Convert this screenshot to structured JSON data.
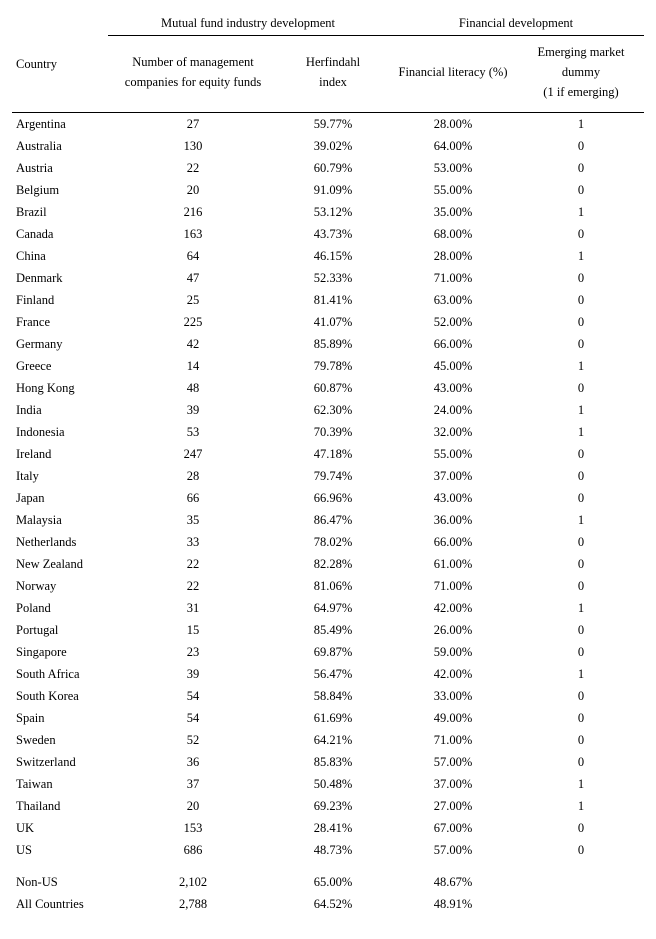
{
  "headers": {
    "country": "Country",
    "group_mf": "Mutual fund industry development",
    "group_fd": "Financial development",
    "col_mgmt_l1": "Number of management",
    "col_mgmt_l2": "companies for equity funds",
    "col_herf_l1": "Herfindahl",
    "col_herf_l2": "index",
    "col_fl": "Financial literacy (%)",
    "col_em_l1": "Emerging market",
    "col_em_l2": "dummy",
    "col_em_l3": "(1 if emerging)"
  },
  "rows": [
    {
      "c": "Argentina",
      "m": "27",
      "h": "59.77%",
      "f": "28.00%",
      "e": "1"
    },
    {
      "c": "Australia",
      "m": "130",
      "h": "39.02%",
      "f": "64.00%",
      "e": "0"
    },
    {
      "c": "Austria",
      "m": "22",
      "h": "60.79%",
      "f": "53.00%",
      "e": "0"
    },
    {
      "c": "Belgium",
      "m": "20",
      "h": "91.09%",
      "f": "55.00%",
      "e": "0"
    },
    {
      "c": "Brazil",
      "m": "216",
      "h": "53.12%",
      "f": "35.00%",
      "e": "1"
    },
    {
      "c": "Canada",
      "m": "163",
      "h": "43.73%",
      "f": "68.00%",
      "e": "0"
    },
    {
      "c": "China",
      "m": "64",
      "h": "46.15%",
      "f": "28.00%",
      "e": "1"
    },
    {
      "c": "Denmark",
      "m": "47",
      "h": "52.33%",
      "f": "71.00%",
      "e": "0"
    },
    {
      "c": "Finland",
      "m": "25",
      "h": "81.41%",
      "f": "63.00%",
      "e": "0"
    },
    {
      "c": "France",
      "m": "225",
      "h": "41.07%",
      "f": "52.00%",
      "e": "0"
    },
    {
      "c": "Germany",
      "m": "42",
      "h": "85.89%",
      "f": "66.00%",
      "e": "0"
    },
    {
      "c": "Greece",
      "m": "14",
      "h": "79.78%",
      "f": "45.00%",
      "e": "1"
    },
    {
      "c": "Hong Kong",
      "m": "48",
      "h": "60.87%",
      "f": "43.00%",
      "e": "0"
    },
    {
      "c": "India",
      "m": "39",
      "h": "62.30%",
      "f": "24.00%",
      "e": "1"
    },
    {
      "c": "Indonesia",
      "m": "53",
      "h": "70.39%",
      "f": "32.00%",
      "e": "1"
    },
    {
      "c": "Ireland",
      "m": "247",
      "h": "47.18%",
      "f": "55.00%",
      "e": "0"
    },
    {
      "c": "Italy",
      "m": "28",
      "h": "79.74%",
      "f": "37.00%",
      "e": "0"
    },
    {
      "c": "Japan",
      "m": "66",
      "h": "66.96%",
      "f": "43.00%",
      "e": "0"
    },
    {
      "c": "Malaysia",
      "m": "35",
      "h": "86.47%",
      "f": "36.00%",
      "e": "1"
    },
    {
      "c": "Netherlands",
      "m": "33",
      "h": "78.02%",
      "f": "66.00%",
      "e": "0"
    },
    {
      "c": "New Zealand",
      "m": "22",
      "h": "82.28%",
      "f": "61.00%",
      "e": "0"
    },
    {
      "c": "Norway",
      "m": "22",
      "h": "81.06%",
      "f": "71.00%",
      "e": "0"
    },
    {
      "c": "Poland",
      "m": "31",
      "h": "64.97%",
      "f": "42.00%",
      "e": "1"
    },
    {
      "c": "Portugal",
      "m": "15",
      "h": "85.49%",
      "f": "26.00%",
      "e": "0"
    },
    {
      "c": "Singapore",
      "m": "23",
      "h": "69.87%",
      "f": "59.00%",
      "e": "0"
    },
    {
      "c": "South Africa",
      "m": "39",
      "h": "56.47%",
      "f": "42.00%",
      "e": "1"
    },
    {
      "c": "South Korea",
      "m": "54",
      "h": "58.84%",
      "f": "33.00%",
      "e": "0"
    },
    {
      "c": "Spain",
      "m": "54",
      "h": "61.69%",
      "f": "49.00%",
      "e": "0"
    },
    {
      "c": "Sweden",
      "m": "52",
      "h": "64.21%",
      "f": "71.00%",
      "e": "0"
    },
    {
      "c": "Switzerland",
      "m": "36",
      "h": "85.83%",
      "f": "57.00%",
      "e": "0"
    },
    {
      "c": "Taiwan",
      "m": "37",
      "h": "50.48%",
      "f": "37.00%",
      "e": "1"
    },
    {
      "c": "Thailand",
      "m": "20",
      "h": "69.23%",
      "f": "27.00%",
      "e": "1"
    },
    {
      "c": "UK",
      "m": "153",
      "h": "28.41%",
      "f": "67.00%",
      "e": "0"
    },
    {
      "c": "US",
      "m": "686",
      "h": "48.73%",
      "f": "57.00%",
      "e": "0"
    }
  ],
  "summary": [
    {
      "c": "Non-US",
      "m": "2,102",
      "h": "65.00%",
      "f": "48.67%",
      "e": ""
    },
    {
      "c": "All Countries",
      "m": "2,788",
      "h": "64.52%",
      "f": "48.91%",
      "e": ""
    }
  ],
  "layout": {
    "col_widths": [
      "96px",
      "170px",
      "110px",
      "130px",
      "126px"
    ]
  }
}
